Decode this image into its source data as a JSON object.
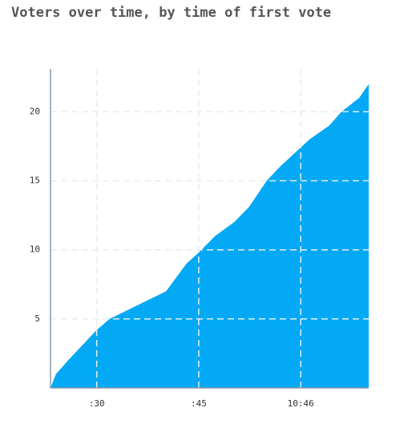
{
  "chart_data": {
    "type": "area",
    "title": "Voters over time, by time of first vote",
    "x": [
      "10:45:23.2",
      "10:45:24.0",
      "10:45:25.8",
      "10:45:30.0",
      "10:45:31.9",
      "10:45:40.2",
      "10:45:43.2",
      "10:45:45.0",
      "10:45:47.4",
      "10:45:50.2",
      "10:45:52.4",
      "10:45:55.0",
      "10:45:56.9",
      "10:46:01.3",
      "10:46:04.2",
      "10:46:06.0",
      "10:46:08.6",
      "10:46:10.0"
    ],
    "values": [
      0,
      1,
      2,
      4.2,
      5,
      7,
      9,
      9.8,
      11,
      12,
      13.1,
      15,
      16,
      18,
      19,
      20,
      21,
      22
    ],
    "color": "#03a9f4",
    "xlim": [
      "10:45:23.2",
      "10:46:10.0"
    ],
    "xticks": [
      {
        "value": "10:45:30",
        "label": ":30"
      },
      {
        "value": "10:45:45",
        "label": ":45"
      },
      {
        "value": "10:46:00",
        "label": "10:46"
      }
    ],
    "ylim": [
      0,
      23.1
    ],
    "yticks": [
      5,
      10,
      15,
      20
    ],
    "grid": true
  }
}
